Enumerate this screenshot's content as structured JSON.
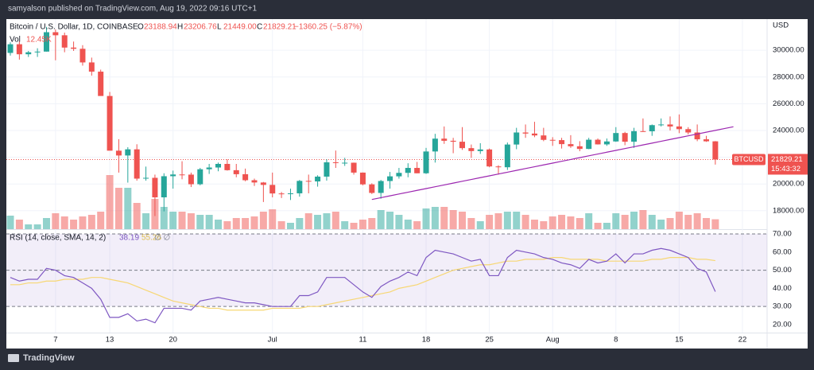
{
  "header": "samyalson published on TradingView.com, Aug 19, 2022 09:16 UTC+1",
  "footer": "TradingView",
  "chart_data": {
    "type": "candlestick",
    "legend": {
      "symbol": "Bitcoin / U.S. Dollar, 1D, COINBASE",
      "ohlc": [
        {
          "label": "O",
          "value": "23188.94"
        },
        {
          "label": "H",
          "value": "23206.76"
        },
        {
          "label": "L",
          "value": "21449.00"
        },
        {
          "label": "C",
          "value": "21829.21"
        }
      ],
      "change": "−1360.25 (−5.87%)",
      "volume_label": "Vol",
      "volume_value": "12.45K"
    },
    "currency": "USD",
    "ticker": "BTCUSD",
    "last_price": {
      "value": 21829.21,
      "label": "21829.21"
    },
    "countdown": "15:43:32",
    "up_color": "#26a69a",
    "down_color": "#ef5350",
    "categories": [
      null,
      null,
      null,
      null,
      null,
      "7",
      null,
      null,
      null,
      null,
      null,
      "13",
      null,
      null,
      null,
      null,
      null,
      null,
      "20",
      null,
      null,
      null,
      null,
      null,
      null,
      null,
      null,
      null,
      null,
      "Jul",
      null,
      null,
      null,
      null,
      null,
      null,
      null,
      null,
      null,
      "11",
      null,
      null,
      null,
      null,
      null,
      null,
      "18",
      null,
      null,
      null,
      null,
      null,
      null,
      "25",
      null,
      null,
      null,
      null,
      null,
      null,
      "Aug",
      null,
      null,
      null,
      null,
      null,
      null,
      "8",
      null,
      null,
      null,
      null,
      null,
      null,
      "15",
      null,
      null,
      null,
      null,
      null,
      null,
      "22",
      null,
      null
    ],
    "ohlc": [
      [
        29800,
        30600,
        29600,
        30450
      ],
      [
        30450,
        30650,
        29300,
        29700
      ],
      [
        29700,
        29950,
        29500,
        29850
      ],
      [
        29850,
        30150,
        29500,
        29900
      ],
      [
        29900,
        31750,
        29900,
        31350
      ],
      [
        31350,
        31550,
        29250,
        31120
      ],
      [
        31120,
        31320,
        29850,
        30200
      ],
      [
        30200,
        30650,
        29950,
        30110
      ],
      [
        30110,
        30380,
        28850,
        29090
      ],
      [
        29090,
        29450,
        28100,
        28400
      ],
      [
        28400,
        28550,
        26600,
        26580
      ],
      [
        26580,
        26880,
        22600,
        22490
      ],
      [
        22490,
        23350,
        20850,
        22130
      ],
      [
        22130,
        22750,
        20100,
        22590
      ],
      [
        22590,
        22970,
        20250,
        20400
      ],
      [
        20400,
        21300,
        20250,
        20460
      ],
      [
        20460,
        20700,
        17600,
        19000
      ],
      [
        19000,
        20800,
        17950,
        20580
      ],
      [
        20580,
        21000,
        19650,
        20710
      ],
      [
        20710,
        21700,
        20350,
        20700
      ],
      [
        20700,
        20850,
        19770,
        19980
      ],
      [
        19980,
        21200,
        19900,
        21100
      ],
      [
        21100,
        21500,
        20750,
        21230
      ],
      [
        21230,
        21600,
        20950,
        21500
      ],
      [
        21500,
        21850,
        21000,
        21030
      ],
      [
        21030,
        21500,
        20500,
        20730
      ],
      [
        20730,
        21150,
        20200,
        20280
      ],
      [
        20280,
        20400,
        19850,
        20110
      ],
      [
        20110,
        20150,
        18650,
        19930
      ],
      [
        19930,
        20850,
        19000,
        19290
      ],
      [
        19290,
        19400,
        18950,
        19250
      ],
      [
        19250,
        19650,
        18800,
        19300
      ],
      [
        19300,
        20300,
        19050,
        20230
      ],
      [
        20230,
        20700,
        19300,
        20190
      ],
      [
        20190,
        20650,
        19800,
        20550
      ],
      [
        20550,
        21850,
        20250,
        21620
      ],
      [
        21620,
        22500,
        21200,
        21590
      ],
      [
        21590,
        21950,
        21350,
        21590
      ],
      [
        21590,
        21600,
        20700,
        20850
      ],
      [
        20850,
        20860,
        19900,
        19970
      ],
      [
        19970,
        20050,
        19250,
        19330
      ],
      [
        19330,
        20300,
        18900,
        20220
      ],
      [
        20220,
        20900,
        19650,
        20570
      ],
      [
        20570,
        21200,
        20400,
        20830
      ],
      [
        20830,
        21550,
        20500,
        21200
      ],
      [
        21200,
        21650,
        20800,
        20800
      ],
      [
        20800,
        22700,
        20750,
        22430
      ],
      [
        22430,
        23750,
        21600,
        23390
      ],
      [
        23390,
        24300,
        23000,
        23230
      ],
      [
        23230,
        23450,
        22300,
        23160
      ],
      [
        23160,
        24250,
        22550,
        22680
      ],
      [
        22680,
        22950,
        21950,
        22460
      ],
      [
        22460,
        23050,
        22250,
        22580
      ],
      [
        22580,
        22650,
        21250,
        21310
      ],
      [
        21310,
        21400,
        20700,
        21250
      ],
      [
        21250,
        23100,
        21050,
        22950
      ],
      [
        22950,
        24200,
        22600,
        23850
      ],
      [
        23850,
        24450,
        23450,
        23770
      ],
      [
        23770,
        24650,
        23500,
        23630
      ],
      [
        23630,
        24200,
        23200,
        23300
      ],
      [
        23300,
        23500,
        22850,
        23280
      ],
      [
        23280,
        23450,
        22650,
        22980
      ],
      [
        22980,
        23650,
        22700,
        22820
      ],
      [
        22820,
        23200,
        22450,
        22620
      ],
      [
        22620,
        23450,
        22600,
        23310
      ],
      [
        23310,
        23400,
        22950,
        22960
      ],
      [
        22960,
        23400,
        22850,
        23180
      ],
      [
        23180,
        24250,
        23150,
        23810
      ],
      [
        23810,
        23900,
        22900,
        23160
      ],
      [
        23160,
        24200,
        22700,
        23950
      ],
      [
        23950,
        24900,
        23900,
        23940
      ],
      [
        23940,
        24450,
        23600,
        24400
      ],
      [
        24400,
        24900,
        24300,
        24450
      ],
      [
        24450,
        25050,
        24000,
        24300
      ],
      [
        24300,
        25200,
        23800,
        24100
      ],
      [
        24100,
        24250,
        23700,
        23850
      ],
      [
        23850,
        24450,
        23200,
        23340
      ],
      [
        23340,
        23600,
        23150,
        23190
      ],
      [
        23188.94,
        23206.76,
        21449.0,
        21829.21
      ],
      null,
      null,
      null,
      null,
      null
    ],
    "volume": [
      17,
      12,
      6,
      6,
      14,
      20,
      16,
      12,
      16,
      18,
      22,
      68,
      52,
      52,
      33,
      20,
      38,
      28,
      22,
      22,
      20,
      18,
      18,
      12,
      10,
      14,
      14,
      16,
      22,
      25,
      10,
      8,
      14,
      20,
      18,
      20,
      22,
      10,
      8,
      12,
      14,
      24,
      22,
      18,
      12,
      10,
      26,
      28,
      28,
      24,
      22,
      14,
      10,
      18,
      20,
      22,
      22,
      18,
      12,
      10,
      16,
      18,
      16,
      14,
      20,
      8,
      8,
      20,
      18,
      22,
      24,
      18,
      12,
      14,
      22,
      18,
      20,
      14,
      12.45,
      null,
      null,
      null,
      null,
      null
    ],
    "trendline": {
      "color": "#9c27b0",
      "values": [
        null,
        null,
        null,
        null,
        null,
        null,
        null,
        null,
        null,
        null,
        null,
        null,
        null,
        null,
        null,
        null,
        null,
        null,
        null,
        null,
        null,
        null,
        null,
        null,
        null,
        null,
        null,
        null,
        null,
        null,
        null,
        null,
        null,
        null,
        null,
        null,
        null,
        null,
        null,
        null,
        18840,
        18976,
        19112,
        19248,
        19384,
        19520,
        19656,
        19792,
        19928,
        20064,
        20200,
        20336,
        20472,
        20608,
        20744,
        20880,
        21016,
        21152,
        21288,
        21424,
        21560,
        21696,
        21832,
        21968,
        22104,
        22240,
        22376,
        22512,
        22648,
        22784,
        22920,
        23056,
        23192,
        23328,
        23464,
        23600,
        23736,
        23872,
        24008,
        24144,
        24280,
        null,
        null,
        null
      ]
    },
    "ylim": [
      16620,
      32330
    ],
    "yticks": [
      {
        "value": 18000,
        "label": "18000.00"
      },
      {
        "value": 20000,
        "label": "20000.00"
      },
      {
        "value": 22000,
        "label": "22000.00"
      },
      {
        "value": 24000,
        "label": "24000.00"
      },
      {
        "value": 26000,
        "label": "26000.00"
      },
      {
        "value": 28000,
        "label": "28000.00"
      },
      {
        "value": 30000,
        "label": "30000.00"
      }
    ],
    "grid": true,
    "rsi": {
      "label": "RSI (14, close, SMA, 14, 2)",
      "extra": "∅ ∅",
      "series": [
        {
          "name": "RSI",
          "color": "#7e57c2",
          "last_label": "38.19",
          "values": [
            46,
            44,
            45,
            45,
            51,
            50,
            47,
            46,
            43,
            40,
            34,
            24,
            24,
            26,
            22,
            23,
            21,
            29,
            29,
            29,
            28,
            33,
            34,
            35,
            34,
            33,
            32,
            32,
            31,
            30,
            30,
            30,
            36,
            36,
            38,
            46,
            46,
            46,
            42,
            38,
            35,
            41,
            44,
            46,
            49,
            47,
            57,
            61,
            60,
            59,
            57,
            55,
            56,
            47,
            47,
            57,
            61,
            60,
            59,
            57,
            56,
            54,
            53,
            51,
            56,
            54,
            55,
            59,
            54,
            59,
            59,
            61,
            62,
            61,
            59,
            57,
            51,
            49,
            38.19,
            null,
            null,
            null,
            null,
            null
          ]
        },
        {
          "name": "SMA",
          "color": "#f7d774",
          "last_label": "55.26",
          "values": [
            42,
            42,
            43,
            43,
            44,
            44,
            45,
            45,
            45,
            46,
            46,
            45,
            44,
            43,
            41,
            39,
            37,
            35,
            33,
            32,
            31,
            30,
            29,
            29,
            28,
            28,
            28,
            28,
            28,
            29,
            29,
            29,
            29,
            30,
            30,
            31,
            32,
            33,
            34,
            35,
            36,
            37,
            38,
            40,
            41,
            42,
            44,
            46,
            48,
            50,
            51,
            52,
            53,
            53,
            54,
            55,
            55,
            56,
            56,
            56,
            57,
            57,
            56,
            56,
            56,
            56,
            55,
            55,
            55,
            55,
            55,
            56,
            56,
            57,
            57,
            57,
            56,
            56,
            55.26,
            null,
            null,
            null,
            null,
            null
          ]
        }
      ],
      "ylim": [
        15.6,
        71.75
      ],
      "band": [
        30,
        70
      ],
      "yticks": [
        {
          "value": 20,
          "label": "20.00"
        },
        {
          "value": 30,
          "label": "30.00"
        },
        {
          "value": 40,
          "label": "40.00"
        },
        {
          "value": 50,
          "label": "50.00"
        },
        {
          "value": 60,
          "label": "60.00"
        },
        {
          "value": 70,
          "label": "70.00"
        }
      ],
      "dashed": [
        30,
        50,
        70
      ]
    }
  }
}
